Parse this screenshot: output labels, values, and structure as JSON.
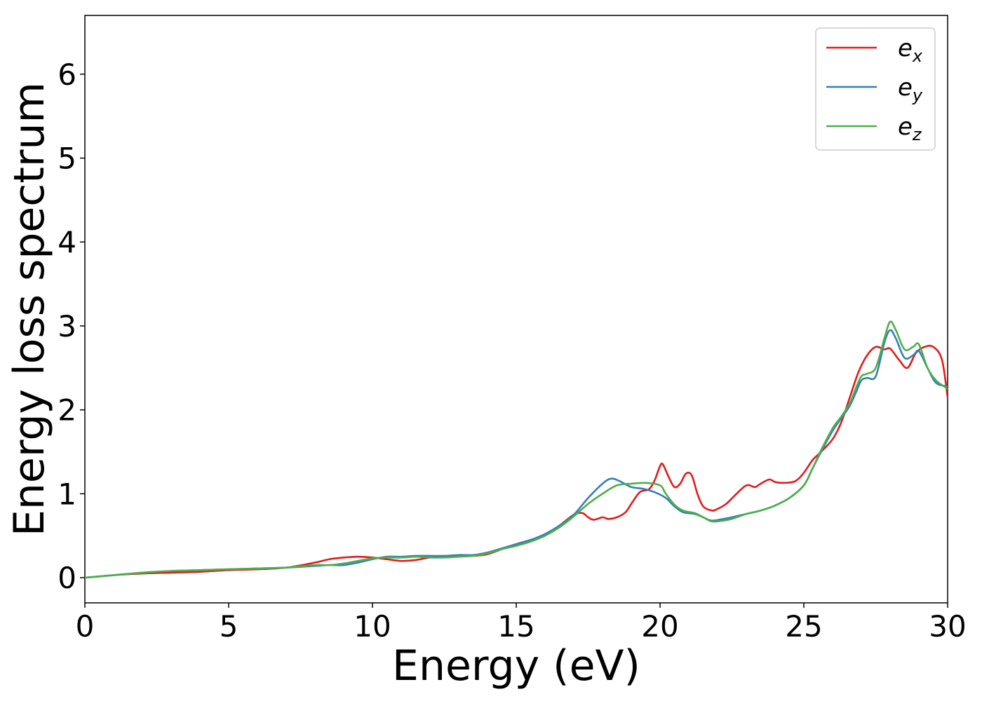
{
  "chart_data": {
    "type": "line",
    "xlabel": "Energy (eV)",
    "ylabel": "Energy loss spectrum",
    "xlim": [
      0,
      30
    ],
    "ylim": [
      -0.3,
      6.7
    ],
    "xticks": [
      0,
      5,
      10,
      15,
      20,
      25,
      30
    ],
    "yticks": [
      0,
      1,
      2,
      3,
      4,
      5,
      6
    ],
    "grid": false,
    "legend_position": "top-right",
    "series": [
      {
        "name": "e",
        "subscript": "x",
        "color": "#e41a1c",
        "x": [
          0,
          1,
          2,
          3,
          4,
          5,
          6,
          7,
          8,
          8.5,
          9,
          9.5,
          10,
          10.5,
          11,
          11.5,
          12,
          12.5,
          13,
          13.5,
          14,
          14.5,
          15,
          15.5,
          16,
          16.5,
          17,
          17.3,
          17.5,
          17.7,
          18,
          18.2,
          18.5,
          18.8,
          19,
          19.3,
          19.6,
          19.8,
          20,
          20.1,
          20.3,
          20.5,
          20.7,
          20.9,
          21.1,
          21.3,
          21.5,
          21.8,
          22,
          22.3,
          22.6,
          23,
          23.3,
          23.5,
          23.8,
          24,
          24.3,
          24.7,
          25,
          25.3,
          25.6,
          26,
          26.3,
          26.6,
          26.9,
          27.2,
          27.5,
          27.8,
          28,
          28.3,
          28.6,
          28.9,
          29.2,
          29.5,
          29.8,
          30
        ],
        "y": [
          0.0,
          0.03,
          0.05,
          0.06,
          0.07,
          0.09,
          0.1,
          0.12,
          0.18,
          0.22,
          0.24,
          0.25,
          0.24,
          0.22,
          0.2,
          0.21,
          0.24,
          0.25,
          0.26,
          0.26,
          0.28,
          0.34,
          0.4,
          0.45,
          0.5,
          0.62,
          0.75,
          0.77,
          0.72,
          0.69,
          0.72,
          0.7,
          0.72,
          0.78,
          0.88,
          1.02,
          1.05,
          1.15,
          1.33,
          1.35,
          1.2,
          1.08,
          1.12,
          1.24,
          1.22,
          1.0,
          0.85,
          0.8,
          0.82,
          0.88,
          0.98,
          1.1,
          1.08,
          1.12,
          1.17,
          1.14,
          1.13,
          1.15,
          1.25,
          1.4,
          1.5,
          1.65,
          1.85,
          2.15,
          2.45,
          2.65,
          2.75,
          2.72,
          2.73,
          2.6,
          2.5,
          2.68,
          2.75,
          2.75,
          2.6,
          2.15
        ]
      },
      {
        "name": "e",
        "subscript": "y",
        "color": "#377eb8",
        "x": [
          0,
          1,
          2,
          3,
          4,
          5,
          6,
          7,
          8,
          8.5,
          9,
          9.5,
          10,
          10.5,
          11,
          11.5,
          12,
          12.5,
          13,
          13.5,
          14,
          14.5,
          15,
          15.5,
          16,
          16.5,
          17,
          17.5,
          18,
          18.3,
          18.6,
          19,
          19.4,
          19.8,
          20.2,
          20.5,
          20.8,
          21.2,
          21.5,
          21.8,
          22.2,
          22.5,
          23,
          23.5,
          24,
          24.5,
          25,
          25.3,
          25.6,
          26,
          26.3,
          26.6,
          26.8,
          27,
          27.2,
          27.5,
          27.8,
          28,
          28.2,
          28.5,
          28.8,
          29,
          29.3,
          29.6,
          30
        ],
        "y": [
          0.0,
          0.03,
          0.06,
          0.08,
          0.09,
          0.1,
          0.11,
          0.12,
          0.14,
          0.15,
          0.15,
          0.18,
          0.22,
          0.25,
          0.25,
          0.26,
          0.26,
          0.26,
          0.27,
          0.27,
          0.3,
          0.35,
          0.4,
          0.45,
          0.52,
          0.62,
          0.75,
          0.95,
          1.12,
          1.18,
          1.15,
          1.08,
          1.06,
          1.02,
          0.95,
          0.85,
          0.78,
          0.76,
          0.72,
          0.68,
          0.7,
          0.72,
          0.76,
          0.8,
          0.86,
          0.95,
          1.1,
          1.3,
          1.5,
          1.75,
          1.9,
          2.05,
          2.2,
          2.35,
          2.38,
          2.4,
          2.8,
          2.95,
          2.85,
          2.62,
          2.65,
          2.7,
          2.5,
          2.32,
          2.28
        ]
      },
      {
        "name": "e",
        "subscript": "z",
        "color": "#4daf4a",
        "x": [
          0,
          1,
          2,
          3,
          4,
          5,
          6,
          7,
          8,
          8.5,
          9,
          9.5,
          10,
          10.5,
          11,
          11.5,
          12,
          12.5,
          13,
          13.5,
          14,
          14.5,
          15,
          15.5,
          16,
          16.5,
          17,
          17.5,
          18,
          18.5,
          19,
          19.5,
          20,
          20.2,
          20.5,
          20.8,
          21.2,
          21.5,
          21.8,
          22.2,
          22.5,
          23,
          23.5,
          24,
          24.5,
          25,
          25.3,
          25.6,
          26,
          26.3,
          26.6,
          26.8,
          27,
          27.2,
          27.5,
          27.8,
          28,
          28.2,
          28.5,
          28.8,
          29,
          29.3,
          29.6,
          30
        ],
        "y": [
          0.0,
          0.03,
          0.06,
          0.08,
          0.09,
          0.1,
          0.11,
          0.12,
          0.15,
          0.15,
          0.17,
          0.2,
          0.23,
          0.24,
          0.24,
          0.25,
          0.24,
          0.24,
          0.25,
          0.26,
          0.29,
          0.34,
          0.38,
          0.43,
          0.5,
          0.6,
          0.73,
          0.88,
          1.0,
          1.1,
          1.12,
          1.13,
          1.1,
          1.0,
          0.87,
          0.8,
          0.77,
          0.72,
          0.67,
          0.68,
          0.7,
          0.76,
          0.8,
          0.86,
          0.95,
          1.1,
          1.3,
          1.52,
          1.78,
          1.92,
          2.08,
          2.25,
          2.4,
          2.43,
          2.5,
          2.85,
          3.05,
          2.95,
          2.72,
          2.75,
          2.78,
          2.5,
          2.35,
          2.25
        ]
      }
    ]
  }
}
